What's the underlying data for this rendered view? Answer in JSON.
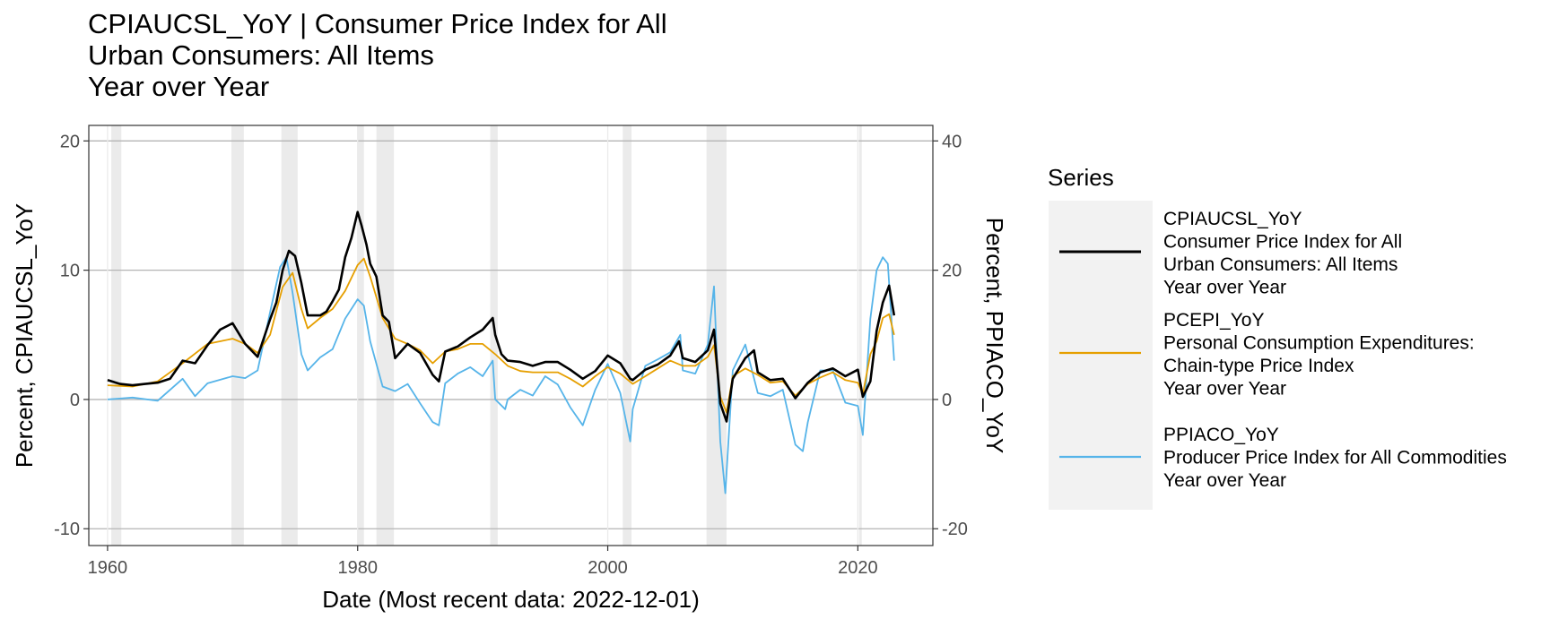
{
  "chart_data": {
    "type": "line",
    "title": [
      "CPIAUCSL_YoY | Consumer Price Index for All",
      "Urban Consumers: All Items",
      "Year over Year"
    ],
    "xlabel": "Date (Most recent data: 2022-12-01)",
    "ylabel": "Percent, CPIAUCSL_YoY",
    "ylabel_right": "Percent, PPIACO_YoY",
    "xlim": [
      1958.5,
      2026
    ],
    "ylim": [
      -11.3,
      21.2
    ],
    "ylim_right": [
      -22.6,
      42.4
    ],
    "x_ticks": [
      1960,
      1980,
      2000,
      2020
    ],
    "y_ticks": [
      -10,
      0,
      10,
      20
    ],
    "y_ticks_right": [
      -20,
      0,
      20,
      40
    ],
    "grid": true,
    "legend": {
      "title": "Series",
      "placement": "right",
      "entries": [
        {
          "lines": [
            "CPIAUCSL_YoY",
            "Consumer Price Index for All",
            "Urban Consumers: All Items",
            "Year over Year"
          ],
          "color": "#000000"
        },
        {
          "lines": [
            "PCEPI_YoY",
            "Personal Consumption Expenditures:",
            "Chain-type Price Index",
            "Year over Year"
          ],
          "color": "#E69F00"
        },
        {
          "lines": [
            "PPIACO_YoY",
            "Producer Price Index for All Commodities",
            "Year over Year"
          ],
          "color": "#56B4E9"
        }
      ]
    },
    "recessions": [
      [
        1960.3,
        1961.1
      ],
      [
        1969.9,
        1970.9
      ],
      [
        1973.9,
        1975.2
      ],
      [
        1980.0,
        1980.5
      ],
      [
        1981.5,
        1982.9
      ],
      [
        1990.6,
        1991.2
      ],
      [
        2001.2,
        2001.9
      ],
      [
        2007.9,
        2009.5
      ],
      [
        2020.1,
        2020.3
      ]
    ],
    "series": [
      {
        "name": "CPIAUCSL_YoY",
        "color": "#000000",
        "axis": "left",
        "x": [
          1960,
          1961,
          1962,
          1963,
          1964,
          1965,
          1966,
          1967,
          1968,
          1969,
          1970,
          1971,
          1972,
          1973,
          1973.5,
          1974,
          1974.5,
          1975,
          1975.5,
          1976,
          1977,
          1977.5,
          1978,
          1978.5,
          1979,
          1979.5,
          1980,
          1980.3,
          1980.7,
          1981,
          1981.5,
          1982,
          1982.5,
          1983,
          1984,
          1985,
          1986,
          1986.5,
          1987,
          1988,
          1989,
          1990,
          1990.8,
          1991,
          1991.5,
          1992,
          1993,
          1994,
          1995,
          1996,
          1997,
          1998,
          1999,
          2000,
          2001,
          2001.8,
          2002,
          2003,
          2004,
          2005,
          2005.7,
          2006,
          2007,
          2008,
          2008.5,
          2009,
          2009.5,
          2010,
          2011,
          2011.7,
          2012,
          2013,
          2014,
          2015,
          2016,
          2017,
          2018,
          2019,
          2020,
          2020.4,
          2021,
          2021.5,
          2022,
          2022.5,
          2022.9
        ],
        "y": [
          1.5,
          1.2,
          1.1,
          1.2,
          1.3,
          1.6,
          3.0,
          2.8,
          4.2,
          5.4,
          5.9,
          4.3,
          3.3,
          6.2,
          7.5,
          10.0,
          11.5,
          11.1,
          9.0,
          6.5,
          6.5,
          6.8,
          7.6,
          8.5,
          11.0,
          12.5,
          14.5,
          13.5,
          12.0,
          10.5,
          9.5,
          6.5,
          6.0,
          3.2,
          4.3,
          3.6,
          1.9,
          1.4,
          3.7,
          4.1,
          4.8,
          5.4,
          6.3,
          5.0,
          3.5,
          3.0,
          2.9,
          2.6,
          2.9,
          2.9,
          2.3,
          1.6,
          2.2,
          3.4,
          2.8,
          1.6,
          1.5,
          2.3,
          2.7,
          3.4,
          4.5,
          3.2,
          2.9,
          3.8,
          5.4,
          -0.3,
          -1.7,
          1.6,
          3.2,
          3.8,
          2.1,
          1.5,
          1.6,
          0.1,
          1.3,
          2.1,
          2.4,
          1.8,
          2.3,
          0.2,
          1.4,
          5.3,
          7.5,
          8.8,
          6.5
        ]
      },
      {
        "name": "PCEPI_YoY",
        "color": "#E69F00",
        "axis": "left",
        "x": [
          1960,
          1962,
          1964,
          1966,
          1968,
          1970,
          1971,
          1972,
          1973,
          1974,
          1974.8,
          1975.5,
          1976,
          1977,
          1978,
          1979,
          1980,
          1980.5,
          1981,
          1982,
          1983,
          1984,
          1985,
          1986,
          1987,
          1988,
          1989,
          1990,
          1991,
          1992,
          1993,
          1994,
          1995,
          1996,
          1997,
          1998,
          1999,
          2000,
          2001,
          2002,
          2003,
          2004,
          2005,
          2006,
          2007,
          2008,
          2008.5,
          2009,
          2009.5,
          2010,
          2011,
          2012,
          2013,
          2014,
          2015,
          2016,
          2017,
          2018,
          2019,
          2020,
          2020.4,
          2021,
          2021.5,
          2022,
          2022.5,
          2022.9
        ],
        "y": [
          1.1,
          1.0,
          1.4,
          2.8,
          4.3,
          4.7,
          4.3,
          3.6,
          5.0,
          8.7,
          9.8,
          7.0,
          5.5,
          6.3,
          7.0,
          8.4,
          10.4,
          10.9,
          9.5,
          6.3,
          4.7,
          4.3,
          3.8,
          2.8,
          3.7,
          3.9,
          4.3,
          4.3,
          3.5,
          2.6,
          2.2,
          2.1,
          2.1,
          2.1,
          1.6,
          1.0,
          1.8,
          2.5,
          2.0,
          1.2,
          1.8,
          2.4,
          3.0,
          2.6,
          2.6,
          3.3,
          4.2,
          0.2,
          -1.0,
          1.8,
          2.4,
          1.9,
          1.3,
          1.4,
          0.3,
          1.2,
          1.7,
          2.1,
          1.5,
          1.3,
          0.4,
          3.5,
          4.5,
          6.3,
          6.6,
          5.0
        ]
      },
      {
        "name": "PPIACO_YoY",
        "color": "#56B4E9",
        "axis": "right",
        "x": [
          1960,
          1962,
          1964,
          1966,
          1967,
          1968,
          1970,
          1971,
          1972,
          1973,
          1973.8,
          1974.3,
          1974.8,
          1975.5,
          1976,
          1977,
          1978,
          1979,
          1980,
          1980.5,
          1981,
          1982,
          1983,
          1984,
          1985,
          1986,
          1986.5,
          1987,
          1988,
          1989,
          1990,
          1990.8,
          1991,
          1991.8,
          1992,
          1993,
          1994,
          1995,
          1996,
          1997,
          1998,
          1999,
          2000,
          2001,
          2001.8,
          2002,
          2003,
          2004,
          2005,
          2005.8,
          2006,
          2007,
          2008,
          2008.5,
          2009,
          2009.4,
          2010,
          2011,
          2012,
          2013,
          2014,
          2015,
          2015.6,
          2016,
          2017,
          2018,
          2019,
          2020,
          2020.4,
          2021,
          2021.5,
          2022,
          2022.4,
          2022.9
        ],
        "y": [
          0,
          0.3,
          -0.2,
          3.2,
          0.5,
          2.5,
          3.6,
          3.3,
          4.5,
          13.5,
          20.5,
          22.0,
          16.5,
          7.0,
          4.5,
          6.5,
          7.8,
          12.5,
          15.5,
          14.5,
          9.0,
          2.0,
          1.3,
          2.4,
          -0.6,
          -3.5,
          -4.0,
          2.5,
          4.0,
          5.0,
          3.6,
          6.0,
          0,
          -1.5,
          0,
          1.5,
          0.6,
          3.6,
          2.3,
          -1.2,
          -4.0,
          1.5,
          5.5,
          1.0,
          -6.5,
          -1.5,
          5.2,
          6.2,
          7.3,
          10.0,
          4.5,
          4.0,
          8.5,
          17.5,
          -6.5,
          -14.5,
          4.5,
          8.5,
          1.0,
          0.5,
          1.5,
          -7.0,
          -8.0,
          -3.5,
          4.5,
          4.5,
          -0.5,
          -1.0,
          -5.5,
          12.5,
          20.0,
          22.0,
          21.0,
          6.0
        ]
      }
    ]
  }
}
